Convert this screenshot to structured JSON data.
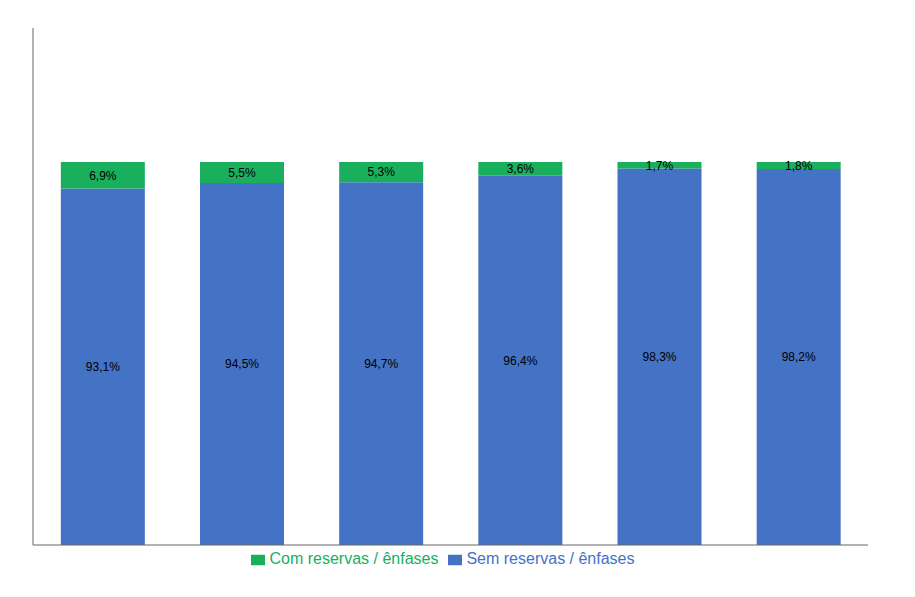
{
  "chart_data": {
    "type": "bar",
    "categories": [
      null,
      null,
      null,
      null,
      null,
      null
    ],
    "series": [
      {
        "name": "Sem reservas / ênfases",
        "color": "#4472C4",
        "values": [
          93.1,
          94.5,
          94.7,
          96.4,
          98.3,
          98.2
        ],
        "value_labels": [
          "93,1%",
          "94,5%",
          "94,7%",
          "96,4%",
          "98,3%",
          "98,2%"
        ]
      },
      {
        "name": "Com reservas / ênfases",
        "color": "#1AAF5D",
        "values": [
          6.9,
          5.5,
          5.3,
          3.6,
          1.7,
          1.8
        ],
        "value_labels": [
          "6,9%",
          "5,5%",
          "5,3%",
          "3,6%",
          "1,7%",
          "1,8%"
        ]
      }
    ],
    "ylim": [
      0,
      135
    ],
    "stacked": true,
    "data_labels": true,
    "tick_labels": false,
    "grid": false,
    "legend": "bottom"
  }
}
